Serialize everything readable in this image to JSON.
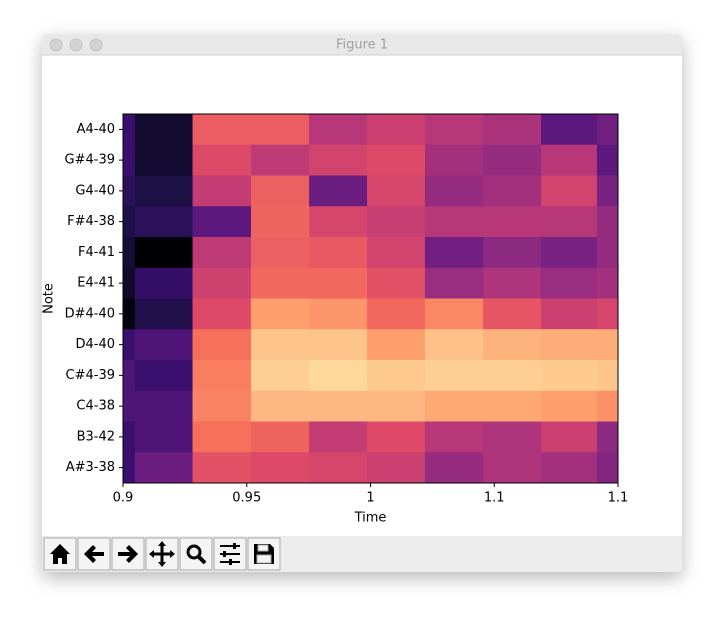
{
  "window": {
    "title": "Figure 1"
  },
  "chart_data": {
    "type": "heatmap",
    "xlabel": "Time",
    "ylabel": "Note",
    "y_categories": [
      "A4-40",
      "G#4-39",
      "G4-40",
      "F#4-38",
      "F4-41",
      "E4-41",
      "D#4-40",
      "D4-40",
      "C#4-39",
      "C4-38",
      "B3-42",
      "A#3-38"
    ],
    "x_edges": [
      0.9,
      0.9048,
      0.9281,
      0.9517,
      0.9752,
      0.9986,
      1.022,
      1.0455,
      1.0689,
      1.0915,
      1.1
    ],
    "values": [
      [
        0.2,
        0.07,
        0.65,
        0.65,
        0.5,
        0.55,
        0.5,
        0.47,
        0.28,
        0.33
      ],
      [
        0.2,
        0.07,
        0.6,
        0.52,
        0.57,
        0.6,
        0.45,
        0.42,
        0.5,
        0.28
      ],
      [
        0.15,
        0.1,
        0.53,
        0.66,
        0.32,
        0.58,
        0.42,
        0.45,
        0.57,
        0.35
      ],
      [
        0.1,
        0.15,
        0.28,
        0.67,
        0.58,
        0.54,
        0.5,
        0.5,
        0.5,
        0.42
      ],
      [
        0.08,
        0.0,
        0.52,
        0.66,
        0.64,
        0.57,
        0.33,
        0.4,
        0.35,
        0.42
      ],
      [
        0.06,
        0.18,
        0.56,
        0.68,
        0.68,
        0.62,
        0.43,
        0.48,
        0.43,
        0.45
      ],
      [
        0.02,
        0.12,
        0.6,
        0.8,
        0.78,
        0.68,
        0.75,
        0.63,
        0.55,
        0.58
      ],
      [
        0.2,
        0.25,
        0.7,
        0.88,
        0.88,
        0.8,
        0.87,
        0.84,
        0.83,
        0.83
      ],
      [
        0.25,
        0.2,
        0.73,
        0.9,
        0.92,
        0.89,
        0.9,
        0.9,
        0.89,
        0.88
      ],
      [
        0.25,
        0.25,
        0.74,
        0.85,
        0.85,
        0.85,
        0.82,
        0.82,
        0.8,
        0.77
      ],
      [
        0.2,
        0.25,
        0.7,
        0.67,
        0.53,
        0.6,
        0.5,
        0.48,
        0.55,
        0.4
      ],
      [
        0.2,
        0.32,
        0.62,
        0.6,
        0.58,
        0.55,
        0.42,
        0.48,
        0.45,
        0.38
      ]
    ],
    "colormap": "magma",
    "vlim": [
      0,
      1
    ],
    "xlim": [
      0.9,
      1.1
    ],
    "xticks": [
      0.9,
      0.95,
      1,
      {
        "value": 1.05,
        "label": "1.1"
      },
      1.1
    ]
  }
}
